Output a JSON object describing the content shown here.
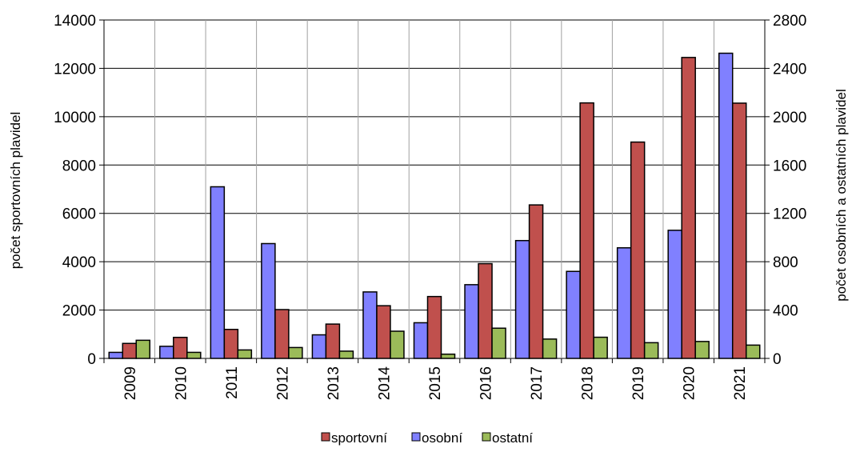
{
  "chart_data": {
    "type": "bar",
    "categories": [
      "2009",
      "2010",
      "2011",
      "2012",
      "2013",
      "2014",
      "2015",
      "2016",
      "2017",
      "2018",
      "2019",
      "2020",
      "2021"
    ],
    "series": [
      {
        "name": "osobní",
        "axis": "right",
        "color": "#8080ff",
        "values": [
          50,
          100,
          1420,
          950,
          195,
          550,
          295,
          610,
          975,
          720,
          915,
          1060,
          2525
        ]
      },
      {
        "name": "sportovní",
        "axis": "left",
        "color": "#c0504d",
        "values": [
          620,
          870,
          1200,
          2020,
          1420,
          2180,
          2560,
          3920,
          6350,
          10570,
          8950,
          12450,
          10560
        ]
      },
      {
        "name": "ostatní",
        "axis": "right",
        "color": "#9bbb59",
        "values": [
          150,
          50,
          70,
          90,
          60,
          225,
          35,
          250,
          160,
          175,
          130,
          140,
          110
        ]
      }
    ],
    "left_axis": {
      "label": "počet sportovních plavidel",
      "min": 0,
      "max": 14000,
      "step": 2000,
      "ticks": [
        "0",
        "2000",
        "4000",
        "6000",
        "8000",
        "10000",
        "12000",
        "14000"
      ]
    },
    "right_axis": {
      "label": "počet osobních a ostatních plavidel",
      "min": 0,
      "max": 2800,
      "step": 400,
      "ticks": [
        "0",
        "400",
        "800",
        "1200",
        "1600",
        "2000",
        "2400",
        "2800"
      ]
    },
    "legend": {
      "position": "bottom",
      "order": [
        "sportovní",
        "osobní",
        "ostatní"
      ]
    },
    "grid": true
  }
}
